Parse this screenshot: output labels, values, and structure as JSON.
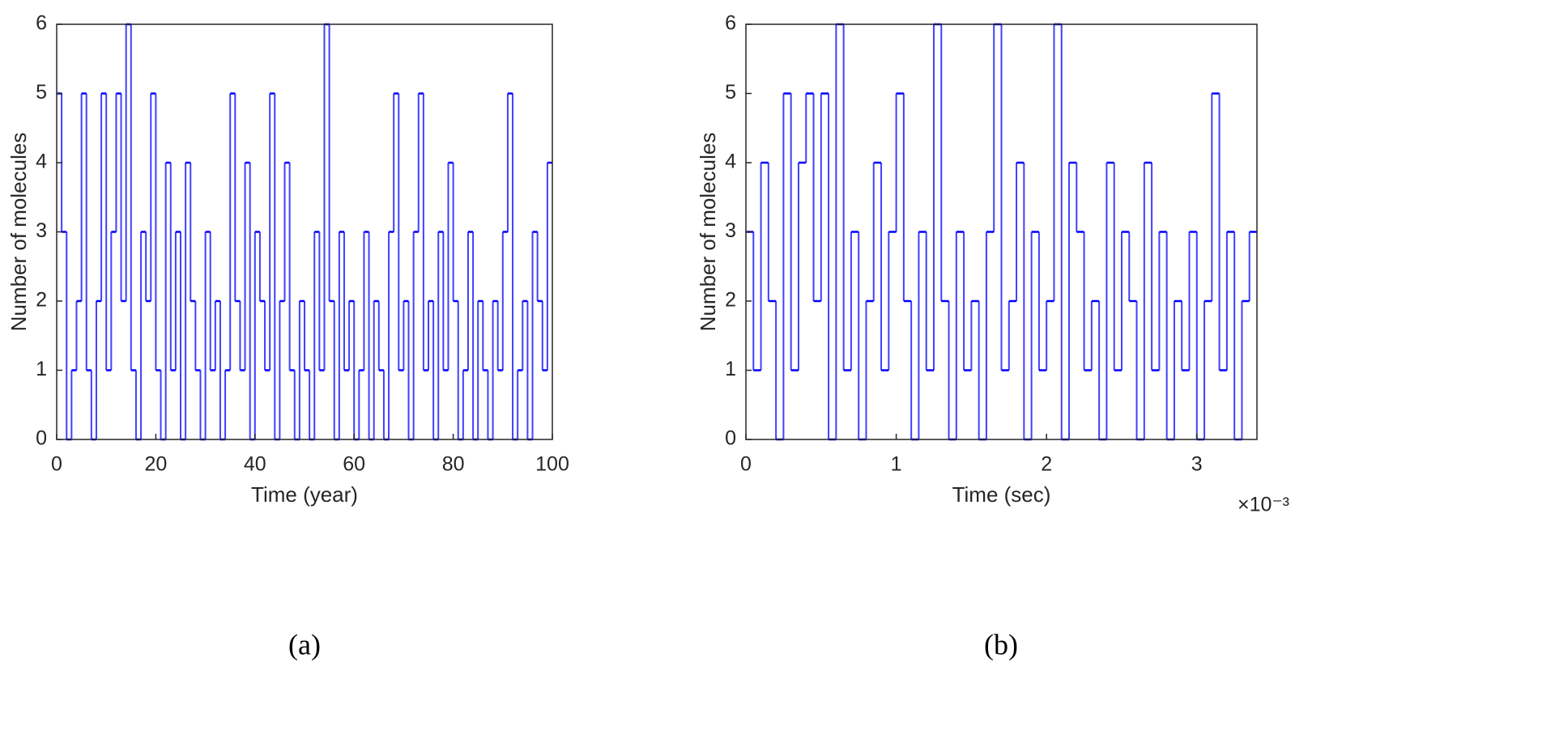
{
  "chart_data": [
    {
      "type": "line",
      "step": "post",
      "color": "#0000ff",
      "caption": "(a)",
      "xlabel": "Time (year)",
      "ylabel": "Number of molecules",
      "xlim": [
        0,
        100
      ],
      "ylim": [
        0,
        6
      ],
      "xticks": [
        0,
        20,
        40,
        60,
        80,
        100
      ],
      "yticks": [
        0,
        1,
        2,
        3,
        4,
        5,
        6
      ],
      "x": [
        0,
        1,
        2,
        3,
        4,
        5,
        6,
        7,
        8,
        9,
        10,
        11,
        12,
        13,
        14,
        15,
        16,
        17,
        18,
        19,
        20,
        21,
        22,
        23,
        24,
        25,
        26,
        27,
        28,
        29,
        30,
        31,
        32,
        33,
        34,
        35,
        36,
        37,
        38,
        39,
        40,
        41,
        42,
        43,
        44,
        45,
        46,
        47,
        48,
        49,
        50,
        51,
        52,
        53,
        54,
        55,
        56,
        57,
        58,
        59,
        60,
        61,
        62,
        63,
        64,
        65,
        66,
        67,
        68,
        69,
        70,
        71,
        72,
        73,
        74,
        75,
        76,
        77,
        78,
        79,
        80,
        81,
        82,
        83,
        84,
        85,
        86,
        87,
        88,
        89,
        90,
        91,
        92,
        93,
        94,
        95,
        96,
        97,
        98,
        99
      ],
      "values": [
        5,
        3,
        0,
        1,
        2,
        5,
        1,
        0,
        2,
        5,
        1,
        3,
        5,
        2,
        6,
        1,
        0,
        3,
        2,
        5,
        1,
        0,
        4,
        1,
        3,
        0,
        4,
        2,
        1,
        0,
        3,
        1,
        2,
        0,
        1,
        5,
        2,
        1,
        4,
        0,
        3,
        2,
        1,
        5,
        0,
        2,
        4,
        1,
        0,
        2,
        1,
        0,
        3,
        1,
        6,
        2,
        0,
        3,
        1,
        2,
        0,
        1,
        3,
        0,
        2,
        1,
        0,
        3,
        5,
        1,
        2,
        0,
        3,
        5,
        1,
        2,
        0,
        3,
        1,
        4,
        2,
        0,
        1,
        3,
        0,
        2,
        1,
        0,
        2,
        1,
        3,
        5,
        0,
        1,
        2,
        0,
        3,
        2,
        1,
        4
      ]
    },
    {
      "type": "line",
      "step": "post",
      "color": "#0000ff",
      "caption": "(b)",
      "xlabel": "Time (sec)",
      "ylabel": "Number of molecules",
      "x_exponent_label": "×10⁻³",
      "xlim": [
        0,
        0.0034
      ],
      "ylim": [
        0,
        6
      ],
      "xticks": [
        0,
        {
          "value": 0.001,
          "label": "1"
        },
        {
          "value": 0.002,
          "label": "2"
        },
        {
          "value": 0.003,
          "label": "3"
        }
      ],
      "yticks": [
        0,
        1,
        2,
        3,
        4,
        5,
        6
      ],
      "x": [
        0,
        5e-05,
        0.0001,
        0.00015,
        0.0002,
        0.00025,
        0.0003,
        0.00035,
        0.0004,
        0.00045,
        0.0005,
        0.00055,
        0.0006,
        0.00065,
        0.0007,
        0.00075,
        0.0008,
        0.00085,
        0.0009,
        0.00095,
        0.001,
        0.00105,
        0.0011,
        0.00115,
        0.0012,
        0.00125,
        0.0013,
        0.00135,
        0.0014,
        0.00145,
        0.0015,
        0.00155,
        0.0016,
        0.00165,
        0.0017,
        0.00175,
        0.0018,
        0.00185,
        0.0019,
        0.00195,
        0.002,
        0.00205,
        0.0021,
        0.00215,
        0.0022,
        0.00225,
        0.0023,
        0.00235,
        0.0024,
        0.00245,
        0.0025,
        0.00255,
        0.0026,
        0.00265,
        0.0027,
        0.00275,
        0.0028,
        0.00285,
        0.0029,
        0.00295,
        0.003,
        0.00305,
        0.0031,
        0.00315,
        0.0032,
        0.00325,
        0.0033,
        0.00335
      ],
      "values": [
        3,
        1,
        4,
        2,
        0,
        5,
        1,
        4,
        5,
        2,
        5,
        0,
        6,
        1,
        3,
        0,
        2,
        4,
        1,
        3,
        5,
        2,
        0,
        3,
        1,
        6,
        2,
        0,
        3,
        1,
        2,
        0,
        3,
        6,
        1,
        2,
        4,
        0,
        3,
        1,
        2,
        6,
        0,
        4,
        3,
        1,
        2,
        0,
        4,
        1,
        3,
        2,
        0,
        4,
        1,
        3,
        0,
        2,
        1,
        3,
        0,
        2,
        5,
        1,
        3,
        0,
        2,
        3
      ]
    }
  ]
}
